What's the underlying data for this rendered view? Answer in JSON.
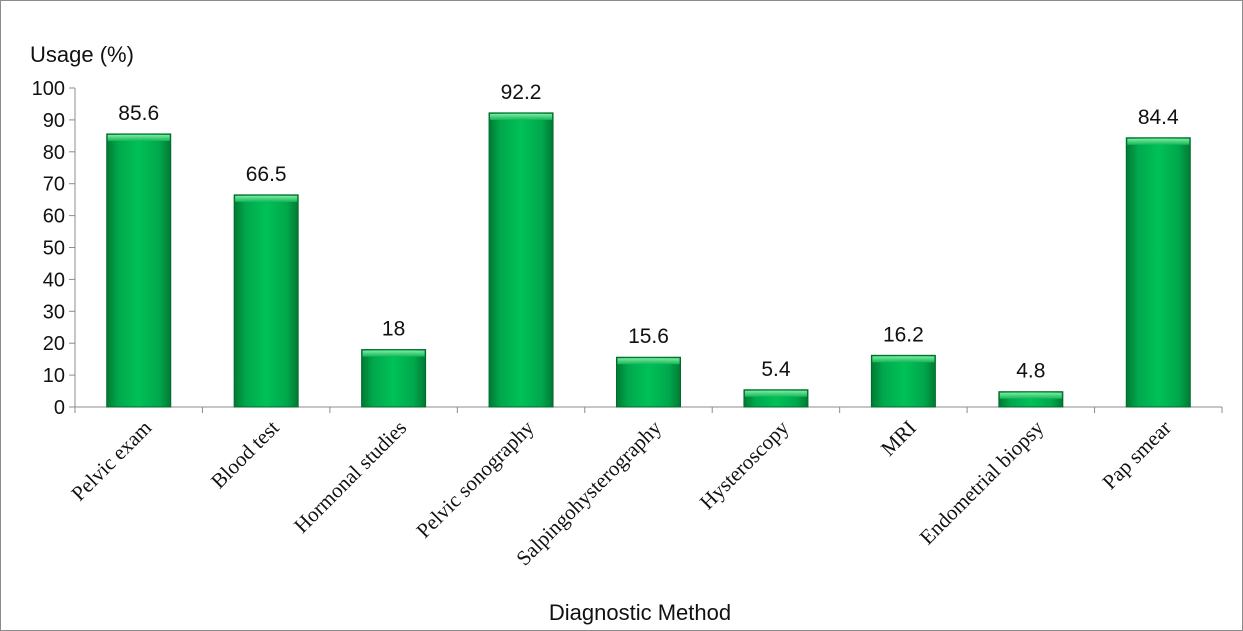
{
  "chart_data": {
    "type": "bar",
    "title": "",
    "xlabel": "Diagnostic Method",
    "ylabel": "Usage (%)",
    "ylim": [
      0,
      100
    ],
    "yticks": [
      0,
      10,
      20,
      30,
      40,
      50,
      60,
      70,
      80,
      90,
      100
    ],
    "categories": [
      "Pelvic exam",
      "Blood test",
      "Hormonal studies",
      "Pelvic sonography",
      "Salpingohysterography",
      "Hysteroscopy",
      "MRI",
      "Endometrial biopsy",
      "Pap smear"
    ],
    "values": [
      85.6,
      66.5,
      18,
      92.2,
      15.6,
      5.4,
      16.2,
      4.8,
      84.4
    ],
    "data_labels": [
      "85.6",
      "66.5",
      "18",
      "92.2",
      "15.6",
      "5.4",
      "16.2",
      "4.8",
      "84.4"
    ],
    "bar_color": "#00b050",
    "grid": false,
    "legend": "none"
  }
}
